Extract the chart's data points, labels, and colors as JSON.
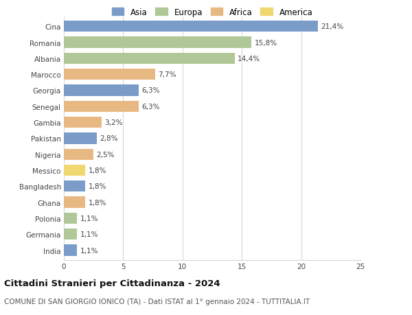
{
  "countries": [
    "Cina",
    "Romania",
    "Albania",
    "Marocco",
    "Georgia",
    "Senegal",
    "Gambia",
    "Pakistan",
    "Nigeria",
    "Messico",
    "Bangladesh",
    "Ghana",
    "Polonia",
    "Germania",
    "India"
  ],
  "values": [
    21.4,
    15.8,
    14.4,
    7.7,
    6.3,
    6.3,
    3.2,
    2.8,
    2.5,
    1.8,
    1.8,
    1.8,
    1.1,
    1.1,
    1.1
  ],
  "labels": [
    "21,4%",
    "15,8%",
    "14,4%",
    "7,7%",
    "6,3%",
    "6,3%",
    "3,2%",
    "2,8%",
    "2,5%",
    "1,8%",
    "1,8%",
    "1,8%",
    "1,1%",
    "1,1%",
    "1,1%"
  ],
  "continents": [
    "Asia",
    "Europa",
    "Europa",
    "Africa",
    "Asia",
    "Africa",
    "Africa",
    "Asia",
    "Africa",
    "America",
    "Asia",
    "Africa",
    "Europa",
    "Europa",
    "Asia"
  ],
  "colors": {
    "Asia": "#7b9cc8",
    "Europa": "#b0c898",
    "Africa": "#e8b882",
    "America": "#f0d870"
  },
  "legend_order": [
    "Asia",
    "Europa",
    "Africa",
    "America"
  ],
  "title": "Cittadini Stranieri per Cittadinanza - 2024",
  "subtitle": "COMUNE DI SAN GIORGIO IONICO (TA) - Dati ISTAT al 1° gennaio 2024 - TUTTITALIA.IT",
  "xlim": [
    0,
    25
  ],
  "xticks": [
    0,
    5,
    10,
    15,
    20,
    25
  ],
  "background_color": "#ffffff",
  "grid_color": "#d8d8d8",
  "bar_height": 0.7,
  "title_fontsize": 9.5,
  "subtitle_fontsize": 7.5,
  "label_fontsize": 7.5,
  "tick_fontsize": 7.5,
  "legend_fontsize": 8.5
}
